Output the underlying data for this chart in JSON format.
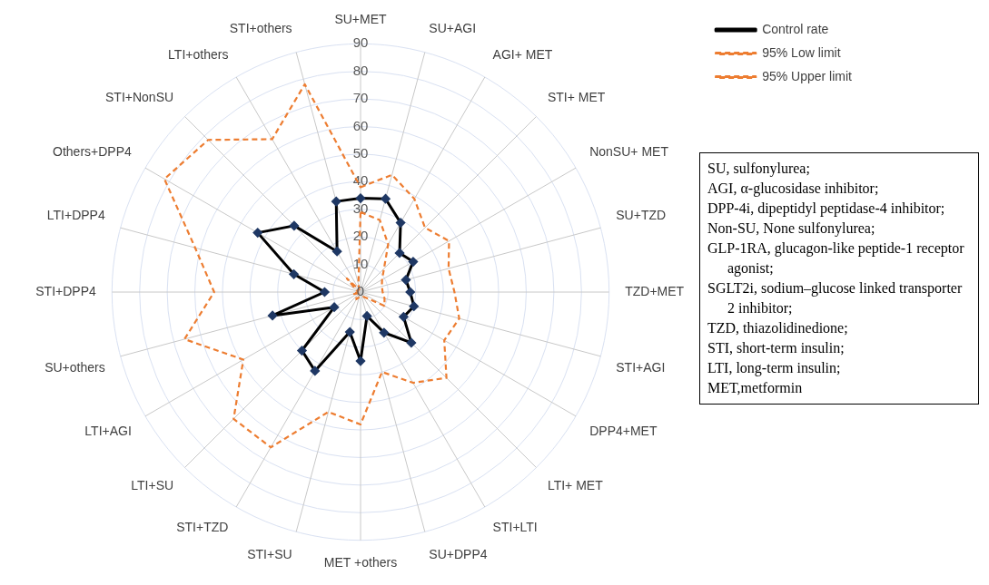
{
  "chart_data": {
    "type": "radar",
    "categories": [
      "SU+MET",
      "SU+AGI",
      "AGI+ MET",
      "STI+ MET",
      "NonSU+ MET",
      "SU+TZD",
      "TZD+MET",
      "STI+AGI",
      "DPP4+MET",
      "LTI+ MET",
      "STI+LTI",
      "SU+DPP4",
      "MET +others",
      "STI+SU",
      "STI+TZD",
      "LTI+SU",
      "LTI+AGI",
      "SU+others",
      "STI+DPP4",
      "LTI+DPP4",
      "Others+DPP4",
      "STI+NonSU",
      "LTI+others",
      "STI+others"
    ],
    "series": [
      {
        "name": "Control rate",
        "color": "#000000",
        "marker": "diamond",
        "line_style": "solid",
        "values": [
          34,
          35,
          29,
          20,
          22,
          17,
          18,
          20,
          18,
          26,
          17,
          9,
          25,
          15,
          33,
          30,
          11,
          33,
          13,
          25,
          43,
          34,
          17,
          34
        ]
      },
      {
        "name": "95% Low limit",
        "color": "#ed7d31",
        "marker": "none",
        "line_style": "dashed",
        "values": [
          29,
          27,
          20,
          12,
          9,
          8,
          8,
          9,
          10,
          3,
          2,
          2,
          2,
          2,
          3,
          2,
          1,
          3,
          1,
          1,
          2,
          7,
          1,
          3
        ]
      },
      {
        "name": "95% Upper limit",
        "color": "#ed7d31",
        "marker": "none",
        "line_style": "dashed",
        "values": [
          38,
          44,
          39,
          33,
          37,
          33,
          34,
          37,
          35,
          44,
          38,
          30,
          48,
          45,
          65,
          65,
          49,
          66,
          53,
          62,
          82,
          78,
          64,
          78
        ]
      }
    ],
    "ylim": [
      0,
      90
    ],
    "yticks": [
      0,
      10,
      20,
      30,
      40,
      50,
      60,
      70,
      80,
      90
    ],
    "grid": true,
    "legend": "top right",
    "annotations": [
      "SU, sulfonylurea;",
      "AGI, α-glucosidase inhibitor;",
      "DPP-4i, dipeptidyl peptidase-4 inhibitor;",
      "Non-SU, None sulfonylurea;",
      "GLP-1RA, glucagon-like peptide-1 receptor agonist;",
      "SGLT2i, sodium–glucose linked transporter 2 inhibitor;",
      "TZD, thiazolidinedione;",
      "STI, short-term insulin;",
      "LTI, long-term insulin;",
      "MET,metformin"
    ]
  }
}
